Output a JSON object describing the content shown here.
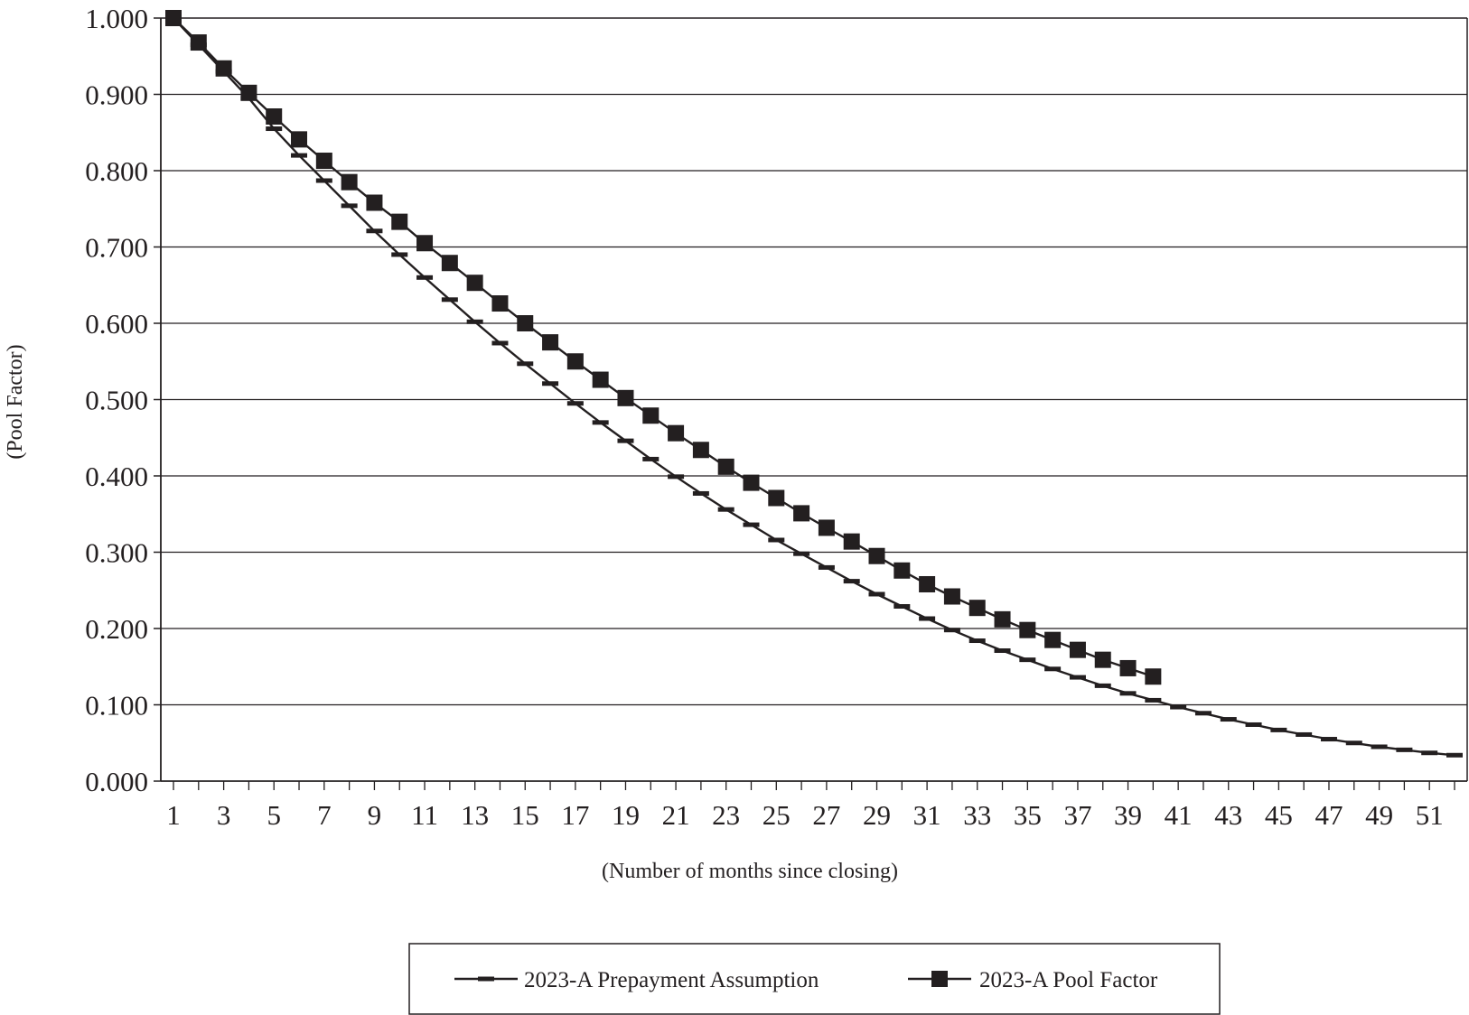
{
  "chart_data": {
    "type": "line",
    "xlabel": "(Number of months since closing)",
    "ylabel": "(Pool Factor)",
    "xlim": [
      1,
      52
    ],
    "ylim": [
      0,
      1
    ],
    "y_ticks": [
      0,
      0.1,
      0.2,
      0.3,
      0.4,
      0.5,
      0.6,
      0.7,
      0.8,
      0.9,
      1.0
    ],
    "y_tick_labels": [
      "0.000",
      "0.100",
      "0.200",
      "0.300",
      "0.400",
      "0.500",
      "0.600",
      "0.700",
      "0.800",
      "0.900",
      "1.000"
    ],
    "x_tick_labels": [
      "1",
      "3",
      "5",
      "7",
      "9",
      "11",
      "13",
      "15",
      "17",
      "19",
      "21",
      "23",
      "25",
      "27",
      "29",
      "31",
      "33",
      "35",
      "37",
      "39",
      "41",
      "43",
      "45",
      "47",
      "49",
      "51"
    ],
    "grid": "horizontal",
    "legend_position": "bottom",
    "series": [
      {
        "name": "2023-A Prepayment Assumption",
        "marker": "dash",
        "x": [
          1,
          2,
          3,
          4,
          5,
          6,
          7,
          8,
          9,
          10,
          11,
          12,
          13,
          14,
          15,
          16,
          17,
          18,
          19,
          20,
          21,
          22,
          23,
          24,
          25,
          26,
          27,
          28,
          29,
          30,
          31,
          32,
          33,
          34,
          35,
          36,
          37,
          38,
          39,
          40,
          41,
          42,
          43,
          44,
          45,
          46,
          47,
          48,
          49,
          50,
          51,
          52
        ],
        "values": [
          1.0,
          0.965,
          0.93,
          0.895,
          0.855,
          0.82,
          0.787,
          0.754,
          0.721,
          0.69,
          0.66,
          0.631,
          0.602,
          0.574,
          0.547,
          0.521,
          0.495,
          0.47,
          0.446,
          0.422,
          0.399,
          0.377,
          0.356,
          0.336,
          0.316,
          0.298,
          0.28,
          0.262,
          0.245,
          0.229,
          0.213,
          0.198,
          0.184,
          0.171,
          0.159,
          0.147,
          0.136,
          0.125,
          0.115,
          0.106,
          0.097,
          0.089,
          0.081,
          0.074,
          0.067,
          0.061,
          0.055,
          0.05,
          0.045,
          0.041,
          0.037,
          0.034
        ]
      },
      {
        "name": "2023-A Pool Factor",
        "marker": "square",
        "x": [
          1,
          2,
          3,
          4,
          5,
          6,
          7,
          8,
          9,
          10,
          11,
          12,
          13,
          14,
          15,
          16,
          17,
          18,
          19,
          20,
          21,
          22,
          23,
          24,
          25,
          26,
          27,
          28,
          29,
          30,
          31,
          32,
          33,
          34,
          35,
          36,
          37,
          38,
          39,
          40
        ],
        "values": [
          1.0,
          0.968,
          0.934,
          0.902,
          0.871,
          0.841,
          0.813,
          0.785,
          0.758,
          0.733,
          0.705,
          0.679,
          0.653,
          0.626,
          0.6,
          0.575,
          0.55,
          0.526,
          0.502,
          0.479,
          0.456,
          0.434,
          0.412,
          0.391,
          0.371,
          0.351,
          0.332,
          0.314,
          0.295,
          0.276,
          0.258,
          0.242,
          0.227,
          0.212,
          0.198,
          0.185,
          0.172,
          0.159,
          0.148,
          0.137
        ]
      }
    ]
  }
}
